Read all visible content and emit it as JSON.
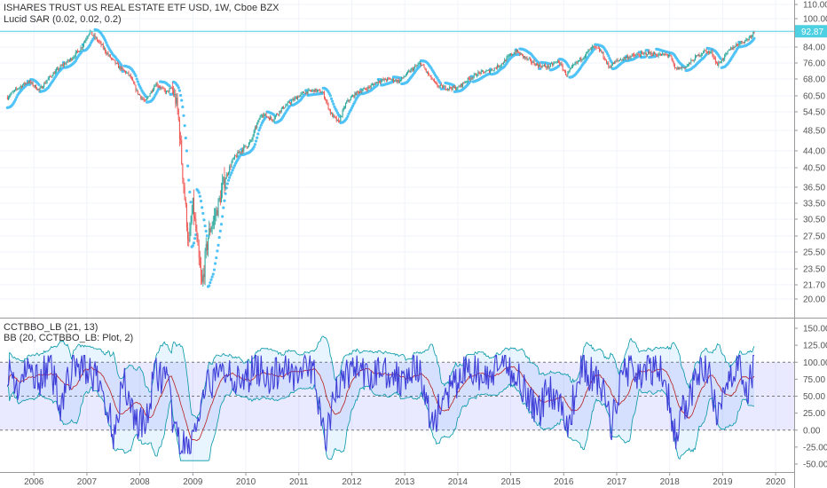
{
  "chart_data": [
    {
      "type": "candlestick",
      "title": "ISHARES TRUST US REAL ESTATE ETF USD, 1W, Cboe BZX",
      "indicator_label": "Lucid SAR (0.02, 0.02, 0.2)",
      "y_ticks": [
        "110.00",
        "100.00",
        "92.00",
        "84.00",
        "76.00",
        "68.00",
        "60.50",
        "54.50",
        "48.50",
        "44.00",
        "40.50",
        "36.50",
        "33.50",
        "30.50",
        "27.50",
        "25.50",
        "23.50",
        "21.70",
        "20.00"
      ],
      "y_tick_values": [
        110.0,
        100.0,
        92.0,
        84.0,
        76.0,
        68.0,
        60.5,
        54.5,
        48.5,
        44.0,
        40.5,
        36.5,
        33.5,
        30.5,
        27.5,
        25.5,
        23.5,
        21.7,
        20.0
      ],
      "last_price": 92.87,
      "last_price_label": "92.87",
      "price_path": [
        [
          2005.5,
          60
        ],
        [
          2005.7,
          64
        ],
        [
          2005.9,
          67
        ],
        [
          2006.1,
          63
        ],
        [
          2006.3,
          69
        ],
        [
          2006.5,
          74
        ],
        [
          2006.7,
          78
        ],
        [
          2006.9,
          84
        ],
        [
          2007.05,
          93
        ],
        [
          2007.1,
          91
        ],
        [
          2007.25,
          86
        ],
        [
          2007.4,
          80
        ],
        [
          2007.6,
          74
        ],
        [
          2007.8,
          70
        ],
        [
          2007.95,
          62
        ],
        [
          2008.1,
          58
        ],
        [
          2008.3,
          66
        ],
        [
          2008.5,
          62
        ],
        [
          2008.6,
          64
        ],
        [
          2008.7,
          57
        ],
        [
          2008.78,
          43
        ],
        [
          2008.85,
          34
        ],
        [
          2008.92,
          26
        ],
        [
          2009.0,
          33
        ],
        [
          2009.1,
          25
        ],
        [
          2009.17,
          21.5
        ],
        [
          2009.3,
          28
        ],
        [
          2009.45,
          32
        ],
        [
          2009.6,
          38
        ],
        [
          2009.75,
          42
        ],
        [
          2009.9,
          44
        ],
        [
          2010.1,
          46
        ],
        [
          2010.3,
          54
        ],
        [
          2010.5,
          52
        ],
        [
          2010.7,
          56
        ],
        [
          2010.9,
          59
        ],
        [
          2011.1,
          62
        ],
        [
          2011.3,
          63
        ],
        [
          2011.45,
          62
        ],
        [
          2011.6,
          54
        ],
        [
          2011.75,
          51
        ],
        [
          2011.9,
          58
        ],
        [
          2012.1,
          62
        ],
        [
          2012.3,
          64
        ],
        [
          2012.5,
          67
        ],
        [
          2012.7,
          68
        ],
        [
          2012.9,
          67
        ],
        [
          2013.1,
          72
        ],
        [
          2013.3,
          76
        ],
        [
          2013.45,
          70
        ],
        [
          2013.6,
          65
        ],
        [
          2013.8,
          64
        ],
        [
          2014.0,
          64
        ],
        [
          2014.2,
          68
        ],
        [
          2014.4,
          71
        ],
        [
          2014.6,
          72
        ],
        [
          2014.8,
          75
        ],
        [
          2015.0,
          80
        ],
        [
          2015.1,
          82
        ],
        [
          2015.3,
          78
        ],
        [
          2015.5,
          75
        ],
        [
          2015.7,
          74
        ],
        [
          2015.9,
          77
        ],
        [
          2016.05,
          70
        ],
        [
          2016.2,
          75
        ],
        [
          2016.4,
          80
        ],
        [
          2016.55,
          84
        ],
        [
          2016.7,
          82
        ],
        [
          2016.85,
          74
        ],
        [
          2017.0,
          77
        ],
        [
          2017.2,
          79
        ],
        [
          2017.4,
          80
        ],
        [
          2017.6,
          81
        ],
        [
          2017.8,
          80
        ],
        [
          2018.0,
          80
        ],
        [
          2018.1,
          73
        ],
        [
          2018.3,
          74
        ],
        [
          2018.5,
          79
        ],
        [
          2018.65,
          82
        ],
        [
          2018.8,
          81
        ],
        [
          2018.9,
          75
        ],
        [
          2019.0,
          78
        ],
        [
          2019.15,
          83
        ],
        [
          2019.3,
          86
        ],
        [
          2019.45,
          88
        ],
        [
          2019.55,
          91
        ],
        [
          2019.6,
          92.87
        ]
      ]
    },
    {
      "type": "line",
      "title": "CCTBBO_LB (21, 13)",
      "indicator_label": "BB (20, CCTBBO_LB: Plot, 2)",
      "y_ticks": [
        "150.00",
        "125.00",
        "100.00",
        "75.00",
        "50.00",
        "25.00",
        "0.00",
        "-25.00",
        "-50.00"
      ],
      "y_tick_values": [
        150,
        125,
        100,
        75,
        50,
        25,
        0,
        -25,
        -50
      ],
      "hlines": [
        100,
        50,
        0
      ],
      "series": [
        {
          "points": [
            [
              2005.5,
              92
            ],
            [
              2005.7,
              62
            ],
            [
              2005.9,
              88
            ],
            [
              2006.1,
              76
            ],
            [
              2006.3,
              95
            ],
            [
              2006.5,
              40
            ],
            [
              2006.7,
              86
            ],
            [
              2006.9,
              98
            ],
            [
              2007.1,
              82
            ],
            [
              2007.3,
              55
            ],
            [
              2007.5,
              -2
            ],
            [
              2007.7,
              75
            ],
            [
              2007.9,
              18
            ],
            [
              2008.1,
              5
            ],
            [
              2008.3,
              88
            ],
            [
              2008.5,
              72
            ],
            [
              2008.7,
              -18
            ],
            [
              2008.9,
              -30
            ],
            [
              2009.1,
              12
            ],
            [
              2009.3,
              68
            ],
            [
              2009.5,
              80
            ],
            [
              2009.7,
              95
            ],
            [
              2009.9,
              58
            ],
            [
              2010.1,
              88
            ],
            [
              2010.3,
              92
            ],
            [
              2010.5,
              72
            ],
            [
              2010.7,
              96
            ],
            [
              2010.9,
              85
            ],
            [
              2011.1,
              92
            ],
            [
              2011.3,
              84
            ],
            [
              2011.5,
              -25
            ],
            [
              2011.7,
              62
            ],
            [
              2011.9,
              82
            ],
            [
              2012.1,
              96
            ],
            [
              2012.3,
              70
            ],
            [
              2012.5,
              92
            ],
            [
              2012.7,
              86
            ],
            [
              2012.9,
              74
            ],
            [
              2013.1,
              96
            ],
            [
              2013.3,
              80
            ],
            [
              2013.5,
              8
            ],
            [
              2013.7,
              40
            ],
            [
              2013.9,
              60
            ],
            [
              2014.1,
              84
            ],
            [
              2014.3,
              92
            ],
            [
              2014.5,
              70
            ],
            [
              2014.7,
              86
            ],
            [
              2014.9,
              96
            ],
            [
              2015.1,
              84
            ],
            [
              2015.3,
              58
            ],
            [
              2015.5,
              20
            ],
            [
              2015.7,
              62
            ],
            [
              2015.9,
              45
            ],
            [
              2016.1,
              8
            ],
            [
              2016.3,
              96
            ],
            [
              2016.5,
              82
            ],
            [
              2016.7,
              66
            ],
            [
              2016.9,
              5
            ],
            [
              2017.1,
              88
            ],
            [
              2017.3,
              92
            ],
            [
              2017.5,
              80
            ],
            [
              2017.7,
              90
            ],
            [
              2017.9,
              86
            ],
            [
              2018.1,
              -12
            ],
            [
              2018.3,
              40
            ],
            [
              2018.5,
              72
            ],
            [
              2018.7,
              96
            ],
            [
              2018.9,
              10
            ],
            [
              2019.1,
              82
            ],
            [
              2019.3,
              96
            ],
            [
              2019.5,
              60
            ],
            [
              2019.6,
              108
            ]
          ]
        }
      ]
    }
  ],
  "x_axis": {
    "labels": [
      "2006",
      "2007",
      "2008",
      "2009",
      "2010",
      "2011",
      "2012",
      "2013",
      "2014",
      "2015",
      "2016",
      "2017",
      "2018",
      "2019",
      "2020"
    ],
    "values": [
      2006,
      2007,
      2008,
      2009,
      2010,
      2011,
      2012,
      2013,
      2014,
      2015,
      2016,
      2017,
      2018,
      2019,
      2020
    ]
  },
  "colors": {
    "up": "#26a69a",
    "down": "#ef5350",
    "sar": "#4fc3f7",
    "price_line": "#4dd0e1",
    "osc_line": "#3f3fd8",
    "bb_basis": "#b71c1c",
    "bb_band": "#0097a7",
    "bb_fill": "rgba(33,150,243,0.10)",
    "band_fill": "rgba(153,153,255,0.22)"
  }
}
